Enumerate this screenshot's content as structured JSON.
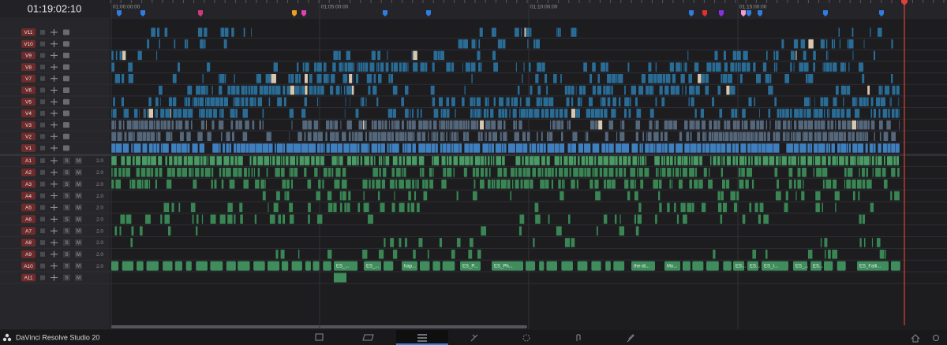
{
  "timecode": "01:19:02:10",
  "ruler": [
    "01:00:00:00",
    "01:05:00:00",
    "01:10:00:00",
    "01:15:00:00"
  ],
  "video_tracks": [
    "V11",
    "V10",
    "V9",
    "V8",
    "V7",
    "V6",
    "V5",
    "V4",
    "V3",
    "V2",
    "V1"
  ],
  "audio_tracks": [
    {
      "name": "A1",
      "format": "2.0"
    },
    {
      "name": "A2",
      "format": "2.0"
    },
    {
      "name": "A3",
      "format": "2.0"
    },
    {
      "name": "A4",
      "format": "2.0"
    },
    {
      "name": "A5",
      "format": "2.0"
    },
    {
      "name": "A6",
      "format": "2.0"
    },
    {
      "name": "A7",
      "format": "2.0"
    },
    {
      "name": "A8",
      "format": "2.0"
    },
    {
      "name": "A9",
      "format": "2.0"
    },
    {
      "name": "A10",
      "format": "2.0"
    },
    {
      "name": "A11"
    }
  ],
  "solo_label": "S",
  "mute_label": "M",
  "a10_clips": [
    "ES_...",
    "ES_...",
    "hap...",
    "ES_P...",
    "ES_Ph...",
    "the-di...",
    "Mo...",
    "ES...",
    "ES...",
    "ES_I...",
    "ES_...",
    "ES...",
    "ES_Falli..."
  ],
  "app_name": "DaVinci Resolve Studio 20"
}
